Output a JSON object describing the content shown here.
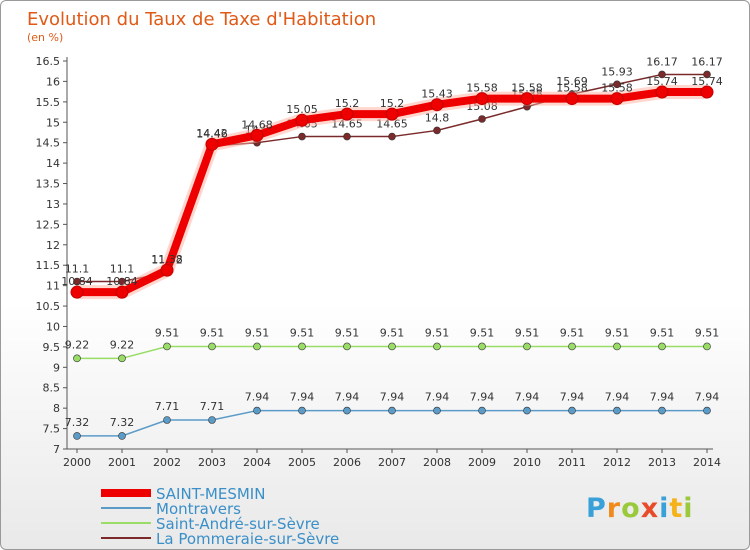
{
  "chart_data": {
    "type": "line",
    "title": "Evolution du Taux de Taxe d'Habitation",
    "subtitle": "(en %)",
    "x": [
      "2000",
      "2001",
      "2002",
      "2003",
      "2004",
      "2005",
      "2006",
      "2007",
      "2008",
      "2009",
      "2010",
      "2011",
      "2012",
      "2013",
      "2014"
    ],
    "ylim": [
      7,
      16.5
    ],
    "yticks": [
      "7",
      "7.5",
      "8",
      "8.5",
      "9",
      "9.5",
      "10",
      "10.5",
      "11",
      "11.5",
      "12",
      "12.5",
      "13",
      "13.5",
      "14",
      "14.5",
      "15",
      "15.5",
      "16",
      "16.5"
    ],
    "grid": false,
    "legend": "bottom-left",
    "series": [
      {
        "name": "SAINT-MESMIN",
        "color": "#ee0000",
        "values": [
          10.84,
          10.84,
          11.38,
          14.46,
          14.68,
          15.05,
          15.2,
          15.2,
          15.43,
          15.58,
          15.58,
          15.58,
          15.58,
          15.74,
          15.74
        ],
        "labels": [
          "10.84",
          "10.84",
          "11.38",
          "14.46",
          "14.68",
          "15.05",
          "15.2",
          "15.2",
          "15.43",
          "15.58",
          "15.58",
          "15.58",
          "15.58",
          "15.74",
          "15.74"
        ]
      },
      {
        "name": "Montravers",
        "color": "#5b9bc8",
        "values": [
          7.32,
          7.32,
          7.71,
          7.71,
          7.94,
          7.94,
          7.94,
          7.94,
          7.94,
          7.94,
          7.94,
          7.94,
          7.94,
          7.94,
          7.94
        ],
        "labels": [
          "7.32",
          "7.32",
          "7.71",
          "7.71",
          "7.94",
          "7.94",
          "7.94",
          "7.94",
          "7.94",
          "7.94",
          "7.94",
          "7.94",
          "7.94",
          "7.94",
          "7.94"
        ]
      },
      {
        "name": "Saint-André-sur-Sèvre",
        "color": "#99dd66",
        "values": [
          9.22,
          9.22,
          9.51,
          9.51,
          9.51,
          9.51,
          9.51,
          9.51,
          9.51,
          9.51,
          9.51,
          9.51,
          9.51,
          9.51,
          9.51
        ],
        "labels": [
          "9.22",
          "9.22",
          "9.51",
          "9.51",
          "9.51",
          "9.51",
          "9.51",
          "9.51",
          "9.51",
          "9.51",
          "9.51",
          "9.51",
          "9.51",
          "9.51",
          "9.51"
        ]
      },
      {
        "name": "La Pommeraie-sur-Sèvre",
        "color": "#7a2a2a",
        "values": [
          11.1,
          11.1,
          11.32,
          14.42,
          14.5,
          14.65,
          14.65,
          14.65,
          14.8,
          15.08,
          15.38,
          15.69,
          15.93,
          16.17,
          16.17
        ],
        "labels": [
          "11.1",
          "11.1",
          "11.32",
          "14.42",
          "14.5",
          "14.65",
          "14.65",
          "14.65",
          "14.8",
          "15.08",
          "15.38",
          "15.69",
          "15.93",
          "16.17",
          "16.17"
        ]
      }
    ]
  },
  "logo": {
    "text": "Proxiti",
    "letters": [
      "P",
      "r",
      "o",
      "x",
      "i",
      "t",
      "i"
    ],
    "colors": [
      "#3aa0d8",
      "#f08a1c",
      "#9ac93c",
      "#e84b2a",
      "#3aa0d8",
      "#f5b21a",
      "#9ac93c"
    ]
  }
}
